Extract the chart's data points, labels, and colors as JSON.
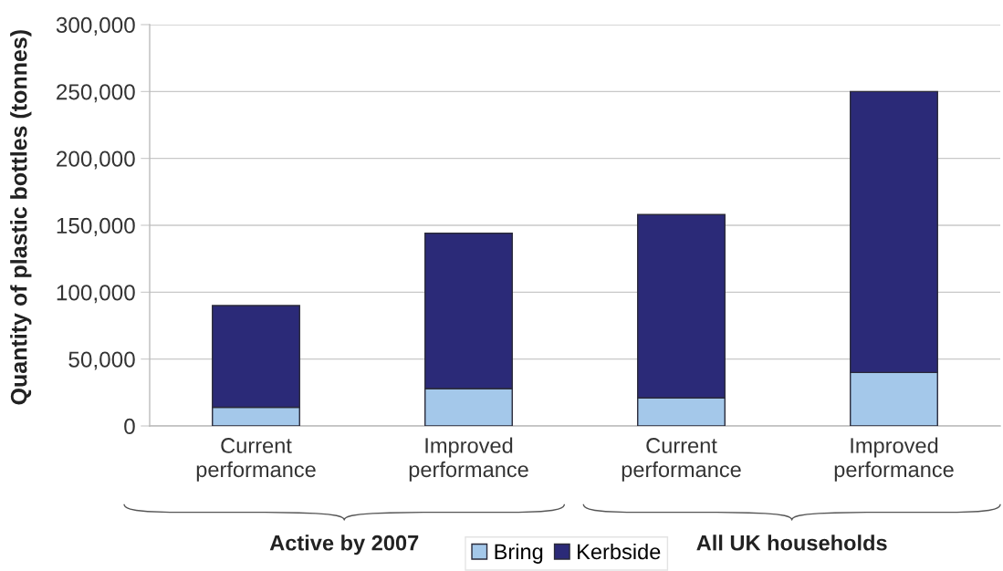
{
  "chart_data": {
    "type": "bar",
    "ylabel": "Quantity of plastic bottles (tonnes)",
    "categories": [
      "Current\nperformance",
      "Improved\nperformance",
      "Current\nperformance",
      "Improved\nperformance"
    ],
    "stacked": true,
    "series": [
      {
        "name": "Bring",
        "color": "#a4c8ea",
        "values": [
          14000,
          28000,
          21000,
          40000
        ]
      },
      {
        "name": "Kerbside",
        "color": "#2b2a78",
        "values": [
          76000,
          116000,
          137000,
          210000
        ]
      }
    ],
    "ylim": [
      0,
      300000
    ],
    "yticks": [
      0,
      {
        "value": 50000,
        "label": "50,000"
      },
      {
        "value": 100000,
        "label": "100,000"
      },
      {
        "value": 150000,
        "label": "150,000"
      },
      {
        "value": 200000,
        "label": "200,000"
      },
      {
        "value": 250000,
        "label": "250,000"
      },
      {
        "value": 300000,
        "label": "300,000"
      }
    ],
    "annotations": [
      "Active by 2007",
      "All UK households"
    ],
    "grid": "y",
    "legend": "bottom"
  }
}
